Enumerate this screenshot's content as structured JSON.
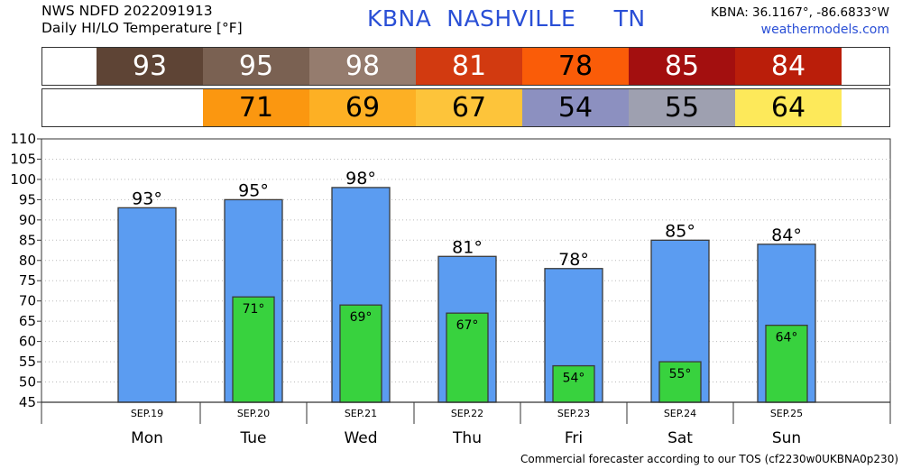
{
  "header": {
    "line1": "NWS NDFD 2022091913",
    "line2": "Daily HI/LO Temperature [°F]",
    "station": "KBNA  NASHVILLE     TN",
    "coords": "KBNA: 36.1167°, -86.6833°W",
    "site": "weathermodels.com"
  },
  "colors": {
    "hi_bar": "#5b9cf1",
    "lo_bar": "#38d23e",
    "bar_edge": "#3a3a3a",
    "header_blue": "#2a4fd6"
  },
  "hi_strip": [
    {
      "value": "93",
      "color": "#5e4435",
      "text_color": "#ffffff"
    },
    {
      "value": "95",
      "color": "#7a6152",
      "text_color": "#ffffff"
    },
    {
      "value": "98",
      "color": "#957c6e",
      "text_color": "#ffffff"
    },
    {
      "value": "81",
      "color": "#d23a10",
      "text_color": "#ffffff"
    },
    {
      "value": "78",
      "color": "#fa5c08",
      "text_color": "#000000"
    },
    {
      "value": "85",
      "color": "#a30f0f",
      "text_color": "#ffffff"
    },
    {
      "value": "84",
      "color": "#ba1e0a",
      "text_color": "#ffffff"
    }
  ],
  "lo_strip": [
    {
      "value": "",
      "color": "#ffffff",
      "text_color": "#000000"
    },
    {
      "value": "71",
      "color": "#fb9710",
      "text_color": "#000000"
    },
    {
      "value": "69",
      "color": "#fdb024",
      "text_color": "#000000"
    },
    {
      "value": "67",
      "color": "#fdc43a",
      "text_color": "#000000"
    },
    {
      "value": "54",
      "color": "#8c90c0",
      "text_color": "#000000"
    },
    {
      "value": "55",
      "color": "#9ea0b0",
      "text_color": "#000000"
    },
    {
      "value": "64",
      "color": "#fde95a",
      "text_color": "#000000"
    }
  ],
  "chart_data": {
    "type": "bar",
    "categories": [
      "Mon",
      "Tue",
      "Wed",
      "Thu",
      "Fri",
      "Sat",
      "Sun"
    ],
    "dates": [
      "SEP.19",
      "SEP.20",
      "SEP.21",
      "SEP.22",
      "SEP.23",
      "SEP.24",
      "SEP.25"
    ],
    "series": [
      {
        "values": [
          93,
          95,
          98,
          81,
          78,
          85,
          84
        ]
      },
      {
        "values": [
          null,
          71,
          69,
          67,
          54,
          55,
          64
        ]
      }
    ],
    "hi_labels": [
      "93°",
      "95°",
      "98°",
      "81°",
      "78°",
      "85°",
      "84°"
    ],
    "lo_labels": [
      "",
      "71°",
      "69°",
      "67°",
      "54°",
      "55°",
      "64°"
    ],
    "ylim": [
      45,
      110
    ],
    "yticks": [
      45,
      50,
      55,
      60,
      65,
      70,
      75,
      80,
      85,
      90,
      95,
      100,
      105,
      110
    ],
    "ytick_labels": [
      "45",
      "50",
      "55",
      "60",
      "65",
      "70",
      "75",
      "80",
      "85",
      "90",
      "95",
      "100",
      "105",
      "110"
    ],
    "grid": "dotted horizontal",
    "xlabel": "",
    "ylabel": ""
  },
  "footer": "Commercial forecaster according to our TOS (cf2230w0UKBNA0p230)"
}
